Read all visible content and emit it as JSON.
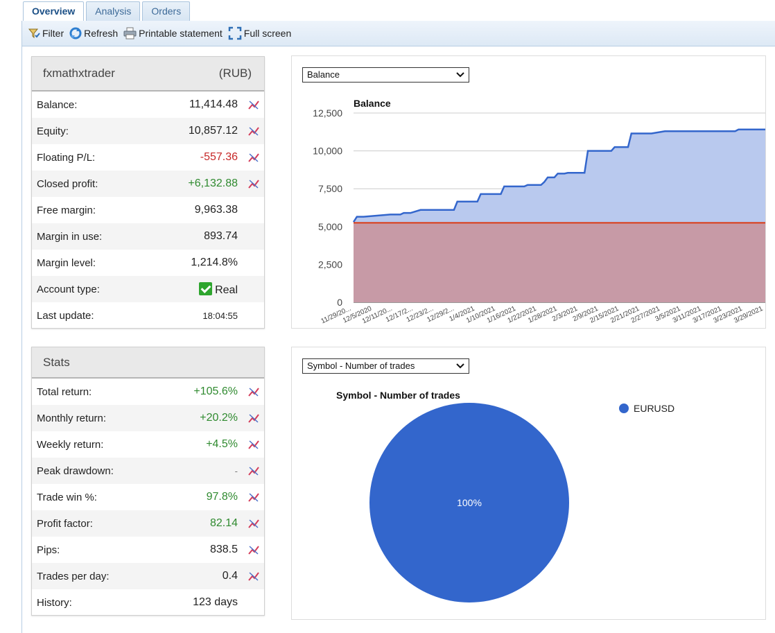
{
  "tabs": [
    {
      "label": "Overview",
      "active": true
    },
    {
      "label": "Analysis",
      "active": false
    },
    {
      "label": "Orders",
      "active": false
    }
  ],
  "toolbar": {
    "filter": "Filter",
    "refresh": "Refresh",
    "printable": "Printable statement",
    "fullscreen": "Full screen"
  },
  "account": {
    "name": "fxmathxtrader",
    "currency": "(RUB)",
    "rows": [
      {
        "label": "Balance:",
        "value": "11,414.48"
      },
      {
        "label": "Equity:",
        "value": "10,857.12"
      },
      {
        "label": "Floating P/L:",
        "value": "-557.36"
      },
      {
        "label": "Closed profit:",
        "value": "+6,132.88"
      },
      {
        "label": "Free margin:",
        "value": "9,963.38"
      },
      {
        "label": "Margin in use:",
        "value": "893.74"
      },
      {
        "label": "Margin level:",
        "value": "1,214.8%"
      },
      {
        "label": "Account type:",
        "value": "Real"
      },
      {
        "label": "Last update:",
        "value": "18:04:55"
      }
    ]
  },
  "stats": {
    "title": "Stats",
    "rows": [
      {
        "label": "Total return:",
        "value": "+105.6%"
      },
      {
        "label": "Monthly return:",
        "value": "+20.2%"
      },
      {
        "label": "Weekly return:",
        "value": "+4.5%"
      },
      {
        "label": "Peak drawdown:",
        "value": "-"
      },
      {
        "label": "Trade win %:",
        "value": "97.8%"
      },
      {
        "label": "Profit factor:",
        "value": "82.14"
      },
      {
        "label": "Pips:",
        "value": "838.5"
      },
      {
        "label": "Trades per day:",
        "value": "0.4"
      },
      {
        "label": "History:",
        "value": "123 days"
      }
    ]
  },
  "balance_select": "Balance",
  "pie_select": "Symbol - Number of trades",
  "colors": {
    "balance": "#3366cc",
    "deposit": "#dc3912",
    "pos": "#2f8a2f",
    "neg": "#c62828"
  },
  "chart_data": [
    {
      "type": "area",
      "title": "Balance",
      "ylim": [
        0,
        12500
      ],
      "yticks": [
        "12,500",
        "10,000",
        "7,500",
        "5,000",
        "2,500",
        "0"
      ],
      "x_tick_labels": [
        "11/29/20...",
        "12/5/2020",
        "12/11/20...",
        "12/17/2...",
        "12/23/2...",
        "12/29/2...",
        "1/4/2021",
        "1/10/2021",
        "1/16/2021",
        "1/22/2021",
        "1/28/2021",
        "2/3/2021",
        "2/9/2021",
        "2/15/2021",
        "2/21/2021",
        "2/27/2021",
        "3/5/2021",
        "3/11/2021",
        "3/17/2021",
        "3/23/2021",
        "3/29/2021"
      ],
      "series": [
        {
          "role": "balance",
          "x": [
            0,
            1,
            3,
            11,
            14,
            15,
            17,
            20,
            30,
            31,
            37,
            38,
            44,
            45,
            51,
            52,
            56,
            57,
            58,
            60,
            61,
            63,
            64,
            69,
            70,
            77,
            78,
            82,
            83,
            89,
            93,
            114,
            115,
            123
          ],
          "values": [
            5300,
            5650,
            5650,
            5800,
            5800,
            5900,
            5900,
            6100,
            6100,
            6650,
            6650,
            7150,
            7150,
            7650,
            7650,
            7750,
            7750,
            7950,
            8250,
            8250,
            8500,
            8500,
            8550,
            8550,
            10000,
            10000,
            10250,
            10250,
            11150,
            11150,
            11300,
            11300,
            11414,
            11414
          ]
        },
        {
          "role": "deposit",
          "x": [
            0,
            123
          ],
          "values": [
            5250,
            5250
          ]
        }
      ]
    },
    {
      "type": "pie",
      "title": "Symbol - Number of trades",
      "labels": [
        "EURUSD"
      ],
      "values": [
        100
      ],
      "slice_labels": [
        "100%"
      ],
      "legend": "right"
    }
  ]
}
